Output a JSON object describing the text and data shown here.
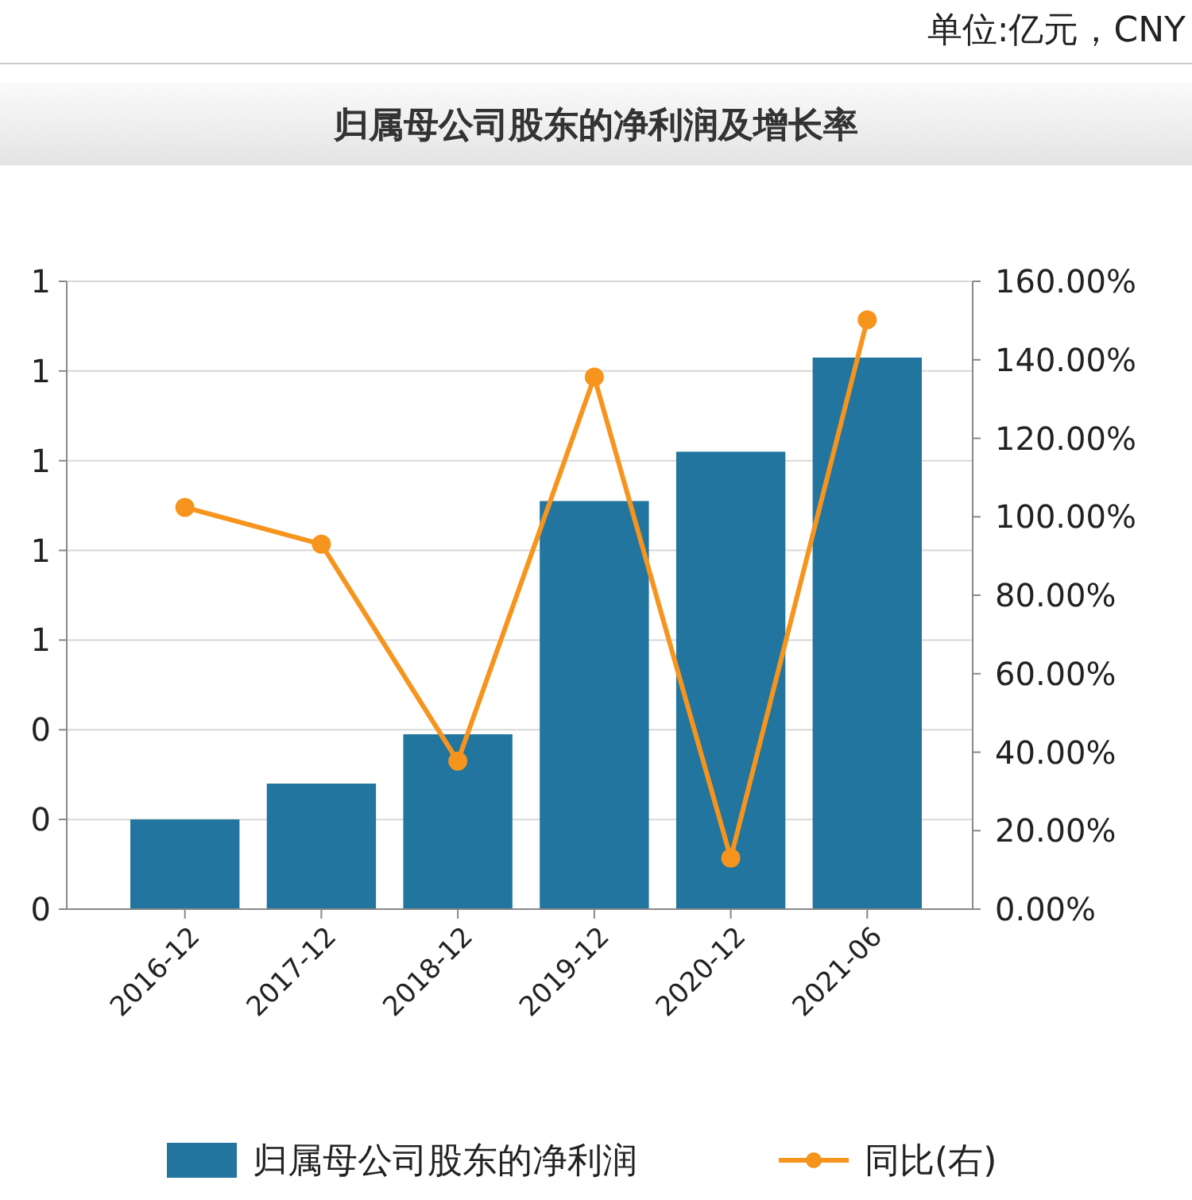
{
  "chart_data": {
    "type": "bar",
    "title": "归属母公司股东的净利润及增长率",
    "annotations": [
      "单位:亿元，CNY"
    ],
    "categories": [
      "2016-12",
      "2017-12",
      "2018-12",
      "2019-12",
      "2020-12",
      "2021-06"
    ],
    "series": [
      {
        "name": "归属母公司股东的净利润",
        "color": "#21759e",
        "values": [
          0.2,
          0.28,
          0.39,
          0.91,
          1.02,
          1.23
        ]
      },
      {
        "name": "同比(右)",
        "type": "line",
        "axis": "y2",
        "color": "#f7941d",
        "values": [
          102.4,
          93,
          37.7,
          135.6,
          13,
          150.2
        ]
      }
    ],
    "ylim": [
      0,
      1.4
    ],
    "yticks": [
      {
        "value": 0,
        "label": "0"
      },
      {
        "value": 0.2,
        "label": "0"
      },
      {
        "value": 0.4,
        "label": "0"
      },
      {
        "value": 0.6,
        "label": "1"
      },
      {
        "value": 0.8,
        "label": "1"
      },
      {
        "value": 1,
        "label": "1"
      },
      {
        "value": 1.2,
        "label": "1"
      },
      {
        "value": 1.4,
        "label": "1"
      }
    ],
    "y2lim": [
      0,
      160
    ],
    "y2ticks": [
      {
        "value": 0,
        "label": "0.00%"
      },
      {
        "value": 20,
        "label": "20.00%"
      },
      {
        "value": 40,
        "label": "40.00%"
      },
      {
        "value": 60,
        "label": "60.00%"
      },
      {
        "value": 80,
        "label": "80.00%"
      },
      {
        "value": 100,
        "label": "100.00%"
      },
      {
        "value": 120,
        "label": "120.00%"
      },
      {
        "value": 140,
        "label": "140.00%"
      },
      {
        "value": 160,
        "label": "160.00%"
      }
    ],
    "grid": "y",
    "legend": "bottom",
    "marker": "circle",
    "line_style": "solid"
  }
}
